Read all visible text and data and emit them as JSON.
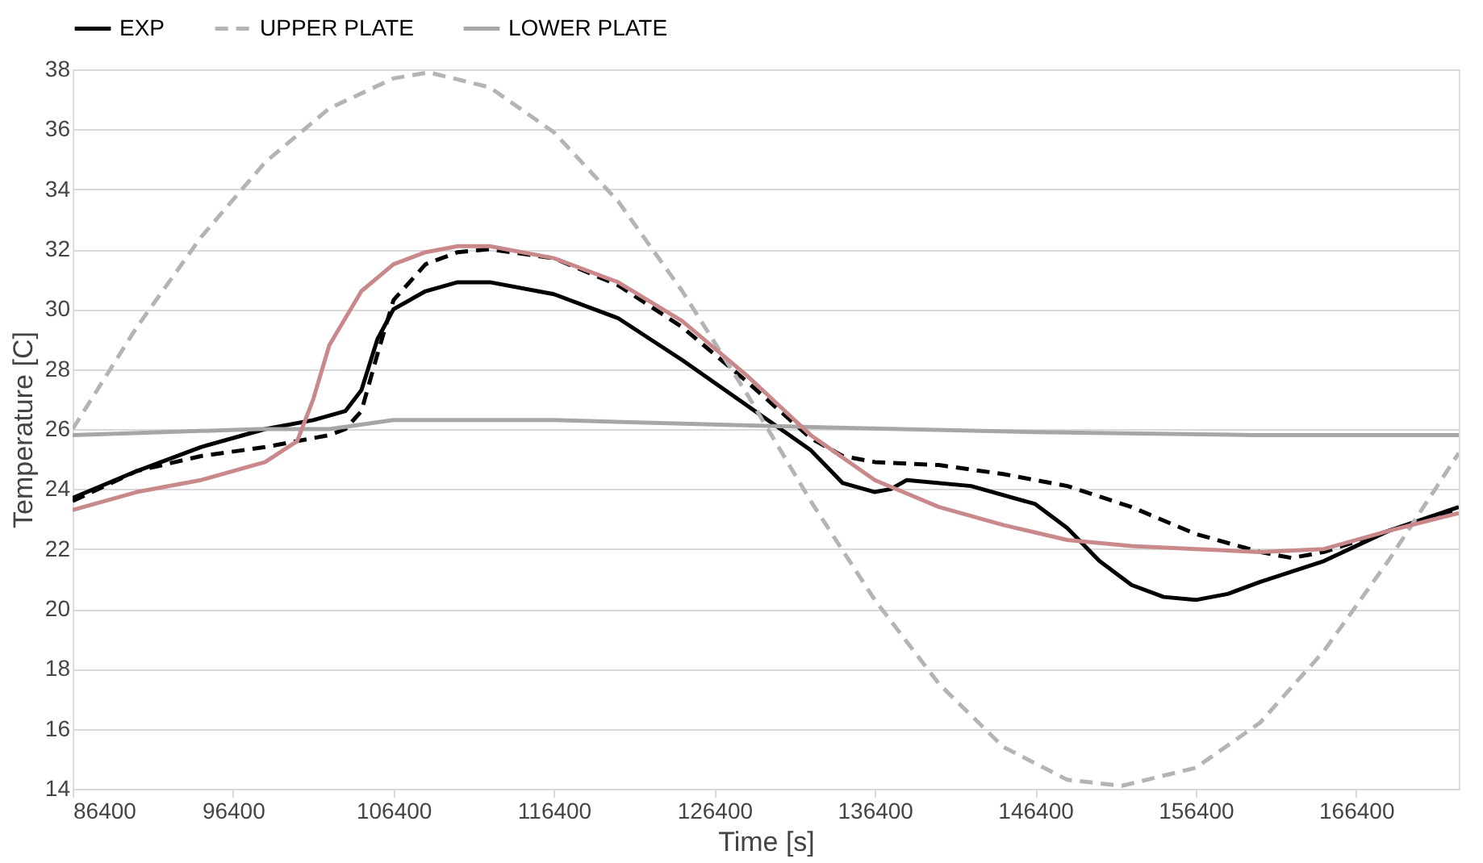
{
  "chart_data": {
    "type": "line",
    "xlabel": "Time [s]",
    "ylabel": "Temperature [C]",
    "xlim": [
      86400,
      172800
    ],
    "xticks": [
      86400,
      96400,
      106400,
      116400,
      126400,
      136400,
      146400,
      156400,
      166400
    ],
    "ylim": [
      14,
      38
    ],
    "yticks": [
      14,
      16,
      18,
      20,
      22,
      24,
      26,
      28,
      30,
      32,
      34,
      36,
      38
    ],
    "grid": "y",
    "legend": "top",
    "marker": "none",
    "series": [
      {
        "name": "EXP",
        "color": "#000000",
        "line_style": "solid",
        "x": [
          86400,
          90400,
          94400,
          98400,
          101400,
          103400,
          104400,
          105400,
          106400,
          108400,
          110400,
          112400,
          116400,
          120400,
          124400,
          128400,
          132400,
          134400,
          136400,
          137400,
          138400,
          142400,
          146400,
          148400,
          150400,
          152400,
          154400,
          156400,
          158400,
          160400,
          164400,
          168400,
          172800
        ],
        "values": [
          23.7,
          24.6,
          25.4,
          26.0,
          26.3,
          26.6,
          27.3,
          29.0,
          30.0,
          30.6,
          30.9,
          30.9,
          30.5,
          29.7,
          28.3,
          26.8,
          25.3,
          24.2,
          23.9,
          24.0,
          24.3,
          24.1,
          23.5,
          22.7,
          21.6,
          20.8,
          20.4,
          20.3,
          20.5,
          20.9,
          21.6,
          22.6,
          23.4
        ]
      },
      {
        "color": "#000000",
        "line_style": "dashed",
        "x": [
          86400,
          90400,
          94400,
          98400,
          102400,
          103400,
          104400,
          105400,
          106400,
          108400,
          110400,
          112400,
          116400,
          120400,
          124400,
          128400,
          132400,
          134400,
          136400,
          140400,
          144400,
          148400,
          152400,
          156400,
          160400,
          162400,
          164400,
          168400,
          172800
        ],
        "values": [
          23.6,
          24.6,
          25.1,
          25.4,
          25.8,
          26.0,
          26.6,
          28.5,
          30.3,
          31.5,
          31.9,
          32.0,
          31.7,
          30.8,
          29.4,
          27.6,
          25.7,
          25.1,
          24.9,
          24.8,
          24.5,
          24.1,
          23.4,
          22.5,
          21.9,
          21.7,
          21.9,
          22.6,
          23.3
        ]
      },
      {
        "name": "UPPER PLATE",
        "color": "#b4b4b4",
        "line_style": "dashed",
        "x": [
          86400,
          90400,
          94400,
          98400,
          102400,
          106400,
          108600,
          112400,
          116400,
          120400,
          124400,
          128400,
          132400,
          136400,
          140400,
          144400,
          148400,
          151800,
          156400,
          160400,
          164400,
          168400,
          172800
        ],
        "values": [
          26.0,
          29.4,
          32.4,
          34.9,
          36.7,
          37.7,
          37.9,
          37.4,
          35.9,
          33.6,
          30.6,
          27.2,
          23.6,
          20.3,
          17.5,
          15.4,
          14.3,
          14.1,
          14.7,
          16.2,
          18.6,
          21.6,
          25.2
        ]
      },
      {
        "name": "LOWER PLATE",
        "color": "#a6a6a6",
        "line_style": "solid",
        "x": [
          86400,
          98000,
          102400,
          106400,
          116400,
          130000,
          146400,
          160000,
          172800
        ],
        "values": [
          25.8,
          26.0,
          26.0,
          26.3,
          26.3,
          26.1,
          25.9,
          25.8,
          25.8
        ]
      },
      {
        "color": "#c9898b",
        "line_style": "solid",
        "x": [
          86400,
          90400,
          94400,
          98400,
          100400,
          101400,
          102400,
          104400,
          106400,
          108400,
          110400,
          112400,
          116400,
          120400,
          124400,
          128400,
          132400,
          136400,
          140400,
          144400,
          148400,
          152400,
          156400,
          160400,
          164400,
          168400,
          172800
        ],
        "values": [
          23.3,
          23.9,
          24.3,
          24.9,
          25.6,
          27.0,
          28.8,
          30.6,
          31.5,
          31.9,
          32.1,
          32.1,
          31.7,
          30.9,
          29.6,
          27.8,
          25.8,
          24.3,
          23.4,
          22.8,
          22.3,
          22.1,
          22.0,
          21.9,
          22.0,
          22.6,
          23.2
        ]
      }
    ]
  }
}
